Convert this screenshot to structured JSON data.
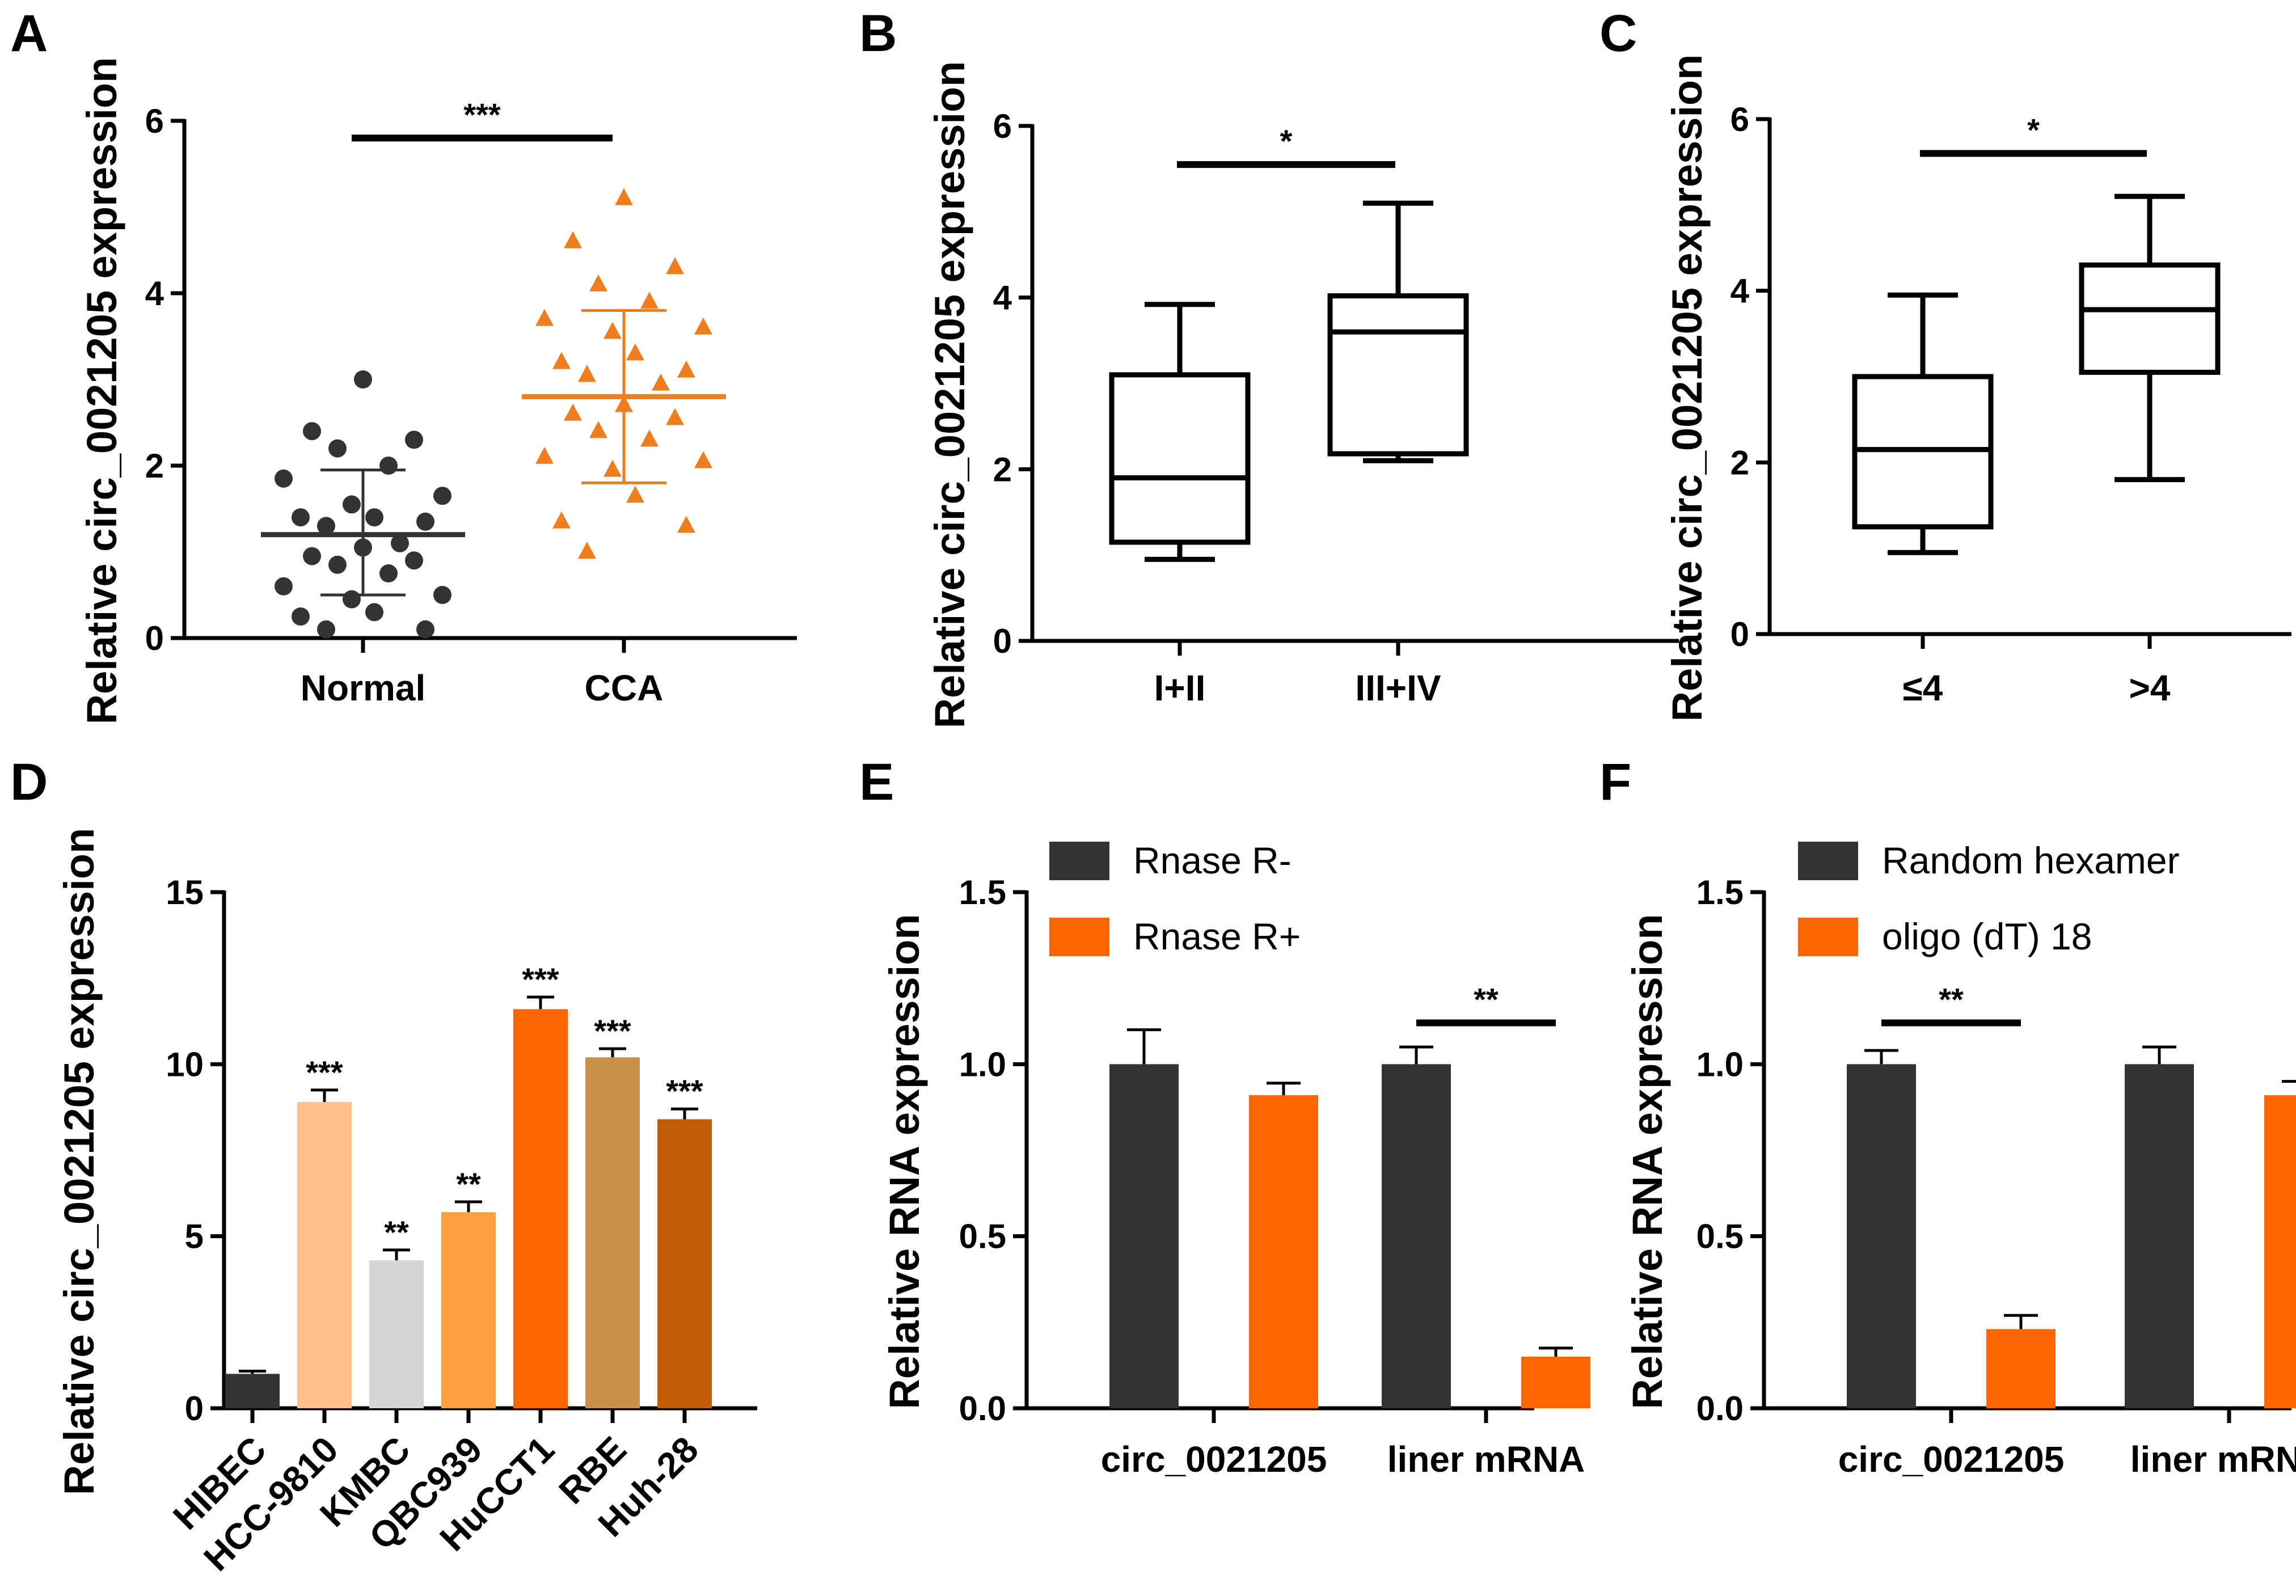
{
  "colors": {
    "dark": "#333333",
    "orange": "#FF6600",
    "orange_point": "#F07D1E",
    "light_orange": "#FFC08A",
    "light_gray": "#D4D4D4",
    "mid_orange": "#FCA040",
    "tan": "#C8924B",
    "brown_orange": "#C05C05"
  },
  "chart_data": [
    {
      "panel": "A",
      "type": "scatter",
      "ylabel": "Relative circ_0021205 expression",
      "ylim": [
        0,
        6
      ],
      "yticks": [
        "0",
        "2",
        "4",
        "6"
      ],
      "categories": [
        "Normal",
        "CCA"
      ],
      "series": [
        {
          "name": "Normal",
          "color": "#333333",
          "marker": "circle",
          "mean": 1.2,
          "sd_low": 0.5,
          "sd_high": 1.95,
          "values": [
            3.0,
            2.4,
            2.3,
            2.2,
            2.0,
            1.85,
            1.65,
            1.55,
            1.4,
            1.4,
            1.35,
            1.3,
            1.1,
            1.05,
            0.95,
            0.9,
            0.85,
            0.75,
            0.6,
            0.5,
            0.45,
            0.3,
            0.25,
            0.1,
            0.1
          ]
        },
        {
          "name": "CCA",
          "color": "#F07D1E",
          "marker": "triangle",
          "mean": 2.8,
          "sd_low": 1.8,
          "sd_high": 3.8,
          "values": [
            5.1,
            4.6,
            4.3,
            4.1,
            3.9,
            3.7,
            3.6,
            3.55,
            3.3,
            3.2,
            3.1,
            3.05,
            2.95,
            2.7,
            2.6,
            2.55,
            2.4,
            2.3,
            2.1,
            2.05,
            1.95,
            1.65,
            1.35,
            1.3,
            1.0
          ]
        }
      ],
      "significance": [
        {
          "from": 0,
          "to": 1,
          "label": "***",
          "y": 5.8
        }
      ]
    },
    {
      "panel": "B",
      "type": "box",
      "ylabel": "Relative circ_0021205 expression",
      "ylim": [
        0,
        6
      ],
      "yticks": [
        "0",
        "2",
        "4",
        "6"
      ],
      "categories": [
        "I+II",
        "III+IV"
      ],
      "boxes": [
        {
          "min": 0.95,
          "q1": 1.15,
          "median": 1.9,
          "q3": 3.1,
          "max": 3.92
        },
        {
          "min": 2.1,
          "q1": 2.18,
          "median": 3.6,
          "q3": 4.02,
          "max": 5.1
        }
      ],
      "significance": [
        {
          "from": 0,
          "to": 1,
          "label": "*",
          "y": 5.55
        }
      ]
    },
    {
      "panel": "C",
      "type": "box",
      "ylabel": "Relative circ_0021205 expression",
      "ylim": [
        0,
        6
      ],
      "yticks": [
        "0",
        "2",
        "4",
        "6"
      ],
      "categories": [
        "≤4",
        ">4"
      ],
      "boxes": [
        {
          "min": 0.95,
          "q1": 1.25,
          "median": 2.15,
          "q3": 3.0,
          "max": 3.95
        },
        {
          "min": 1.8,
          "q1": 3.05,
          "median": 3.78,
          "q3": 4.3,
          "max": 5.1
        }
      ],
      "significance": [
        {
          "from": 0,
          "to": 1,
          "label": "*",
          "y": 5.6
        }
      ]
    },
    {
      "panel": "D",
      "type": "bar",
      "ylabel": "Relative circ_0021205 expression",
      "ylim": [
        0,
        15
      ],
      "yticks": [
        "0",
        "5",
        "10",
        "15"
      ],
      "categories": [
        "HIBEC",
        "HCC-9810",
        "KMBC",
        "QBC939",
        "HuCCT1",
        "RBE",
        "Huh-28"
      ],
      "values": [
        1.0,
        8.9,
        4.3,
        5.7,
        11.6,
        10.2,
        8.4
      ],
      "errors": [
        0.08,
        0.35,
        0.3,
        0.3,
        0.35,
        0.25,
        0.3
      ],
      "bar_colors": [
        "#333333",
        "#FFC08A",
        "#D4D4D4",
        "#FCA040",
        "#FF6600",
        "#C8924B",
        "#C05C05"
      ],
      "labels": [
        "",
        "***",
        "**",
        "**",
        "***",
        "***",
        "***"
      ]
    },
    {
      "panel": "E",
      "type": "bar",
      "ylabel": "Relative RNA expression",
      "ylim": [
        0,
        1.5
      ],
      "yticks": [
        "0.0",
        "0.5",
        "1.0",
        "1.5"
      ],
      "categories": [
        "circ_0021205",
        "liner mRNA"
      ],
      "series": [
        {
          "name": "Rnase R-",
          "color": "#333333",
          "values": [
            1.0,
            1.0
          ],
          "errors": [
            0.1,
            0.05
          ]
        },
        {
          "name": "Rnase R+",
          "color": "#FF6600",
          "values": [
            0.91,
            0.15
          ],
          "errors": [
            0.035,
            0.025
          ]
        }
      ],
      "significance": [
        {
          "group": 1,
          "label": "**",
          "y": 1.12
        }
      ]
    },
    {
      "panel": "F",
      "type": "bar",
      "ylabel": "Relative RNA expression",
      "ylim": [
        0,
        1.5
      ],
      "yticks": [
        "0.0",
        "0.5",
        "1.0",
        "1.5"
      ],
      "categories": [
        "circ_0021205",
        "liner mRNA"
      ],
      "series": [
        {
          "name": "Random hexamer",
          "color": "#333333",
          "values": [
            1.0,
            1.0
          ],
          "errors": [
            0.04,
            0.05
          ]
        },
        {
          "name": "oligo (dT) 18",
          "color": "#FF6600",
          "values": [
            0.23,
            0.91
          ],
          "errors": [
            0.04,
            0.04
          ]
        }
      ],
      "significance": [
        {
          "group": 0,
          "label": "**",
          "y": 1.12
        }
      ]
    }
  ]
}
